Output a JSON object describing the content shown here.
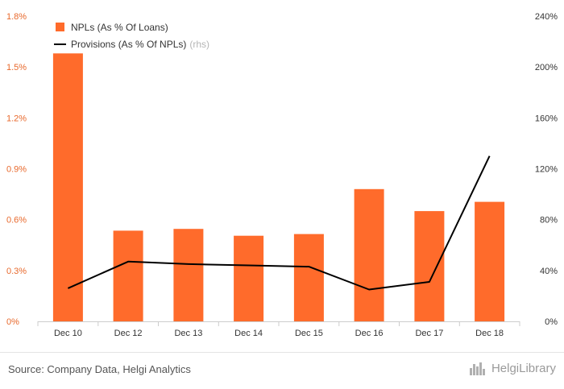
{
  "chart_data": {
    "type": "bar",
    "categories": [
      "Dec 10",
      "Dec 12",
      "Dec 13",
      "Dec 14",
      "Dec 15",
      "Dec 16",
      "Dec 17",
      "Dec 18"
    ],
    "series": [
      {
        "name": "NPLs (As % Of Loans)",
        "type": "bar",
        "axis": "left",
        "unit": "%",
        "values": [
          1.58,
          0.535,
          0.545,
          0.505,
          0.515,
          0.78,
          0.65,
          0.705
        ]
      },
      {
        "name": "Provisions (As % Of NPLs)",
        "name_suffix": "(rhs)",
        "type": "line",
        "axis": "right",
        "unit": "%",
        "values": [
          26,
          47,
          45,
          44,
          43,
          25,
          31,
          130
        ]
      }
    ],
    "y_left": {
      "lim": [
        0,
        1.8
      ],
      "ticks": [
        0,
        0.3,
        0.6,
        0.9,
        1.2,
        1.5,
        1.8
      ],
      "tick_labels": [
        "0%",
        "0.3%",
        "0.6%",
        "0.9%",
        "1.2%",
        "1.5%",
        "1.8%"
      ]
    },
    "y_right": {
      "lim": [
        0,
        240
      ],
      "ticks": [
        0,
        40,
        80,
        120,
        160,
        200,
        240
      ],
      "tick_labels": [
        "0%",
        "40%",
        "80%",
        "120%",
        "160%",
        "200%",
        "240%"
      ]
    },
    "grid": false,
    "legend_position": "top-left",
    "colors": {
      "bars": "#ff6b2b",
      "line": "#000000",
      "left_axis_text": "#e8692c"
    }
  },
  "footer": {
    "source": "Source: Company Data, Helgi Analytics",
    "brand": "HelgiLibrary",
    "brand_icon": "helgi-logo-icon"
  }
}
